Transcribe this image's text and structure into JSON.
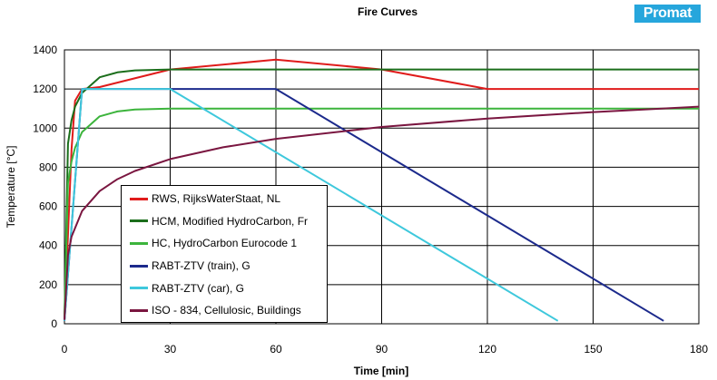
{
  "brand": {
    "logo_text": "Promat",
    "logo_color": "#26a6dc"
  },
  "chart_data": {
    "type": "line",
    "title": "Fire Curves",
    "xlabel": "Time [min]",
    "ylabel": "Temperature [°C]",
    "xlim": [
      0,
      180
    ],
    "ylim": [
      0,
      1400
    ],
    "xticks": [
      0,
      30,
      60,
      90,
      120,
      150,
      180
    ],
    "yticks": [
      0,
      200,
      400,
      600,
      800,
      1000,
      1200,
      1400
    ],
    "grid": true,
    "legend_position": "lower-left (inside)",
    "series": [
      {
        "name": "RWS, RijksWaterStaat, NL",
        "color": "#e01b1b",
        "x": [
          0,
          2,
          3,
          5,
          10,
          30,
          60,
          90,
          120,
          180
        ],
        "y": [
          20,
          890,
          1140,
          1200,
          1210,
          1300,
          1350,
          1300,
          1200,
          1200
        ]
      },
      {
        "name": "HCM, Modified HydroCarbon, Fr",
        "color": "#1b6e1b",
        "x": [
          0,
          1,
          2,
          3,
          5,
          10,
          15,
          20,
          30,
          60,
          120,
          180
        ],
        "y": [
          20,
          920,
          1040,
          1110,
          1180,
          1260,
          1285,
          1295,
          1300,
          1300,
          1300,
          1300
        ]
      },
      {
        "name": "HC, HydroCarbon Eurocode 1",
        "color": "#3cb43c",
        "x": [
          0,
          1,
          2,
          3,
          5,
          10,
          15,
          20,
          30,
          60,
          120,
          180
        ],
        "y": [
          20,
          720,
          830,
          900,
          980,
          1060,
          1085,
          1095,
          1100,
          1100,
          1100,
          1100
        ]
      },
      {
        "name": "RABT-ZTV (train), G",
        "color": "#1c2a8c",
        "x": [
          0,
          5,
          60,
          170
        ],
        "y": [
          15,
          1200,
          1200,
          15
        ]
      },
      {
        "name": "RABT-ZTV (car), G",
        "color": "#3ec8dc",
        "x": [
          0,
          5,
          30,
          140
        ],
        "y": [
          15,
          1200,
          1200,
          15
        ]
      },
      {
        "name": "ISO - 834, Cellulosic, Buildings",
        "color": "#7a1640",
        "x": [
          0,
          1,
          2,
          5,
          10,
          15,
          20,
          30,
          45,
          60,
          90,
          120,
          150,
          180
        ],
        "y": [
          20,
          350,
          445,
          576,
          678,
          739,
          781,
          842,
          902,
          945,
          1006,
          1049,
          1082,
          1110
        ]
      }
    ]
  }
}
